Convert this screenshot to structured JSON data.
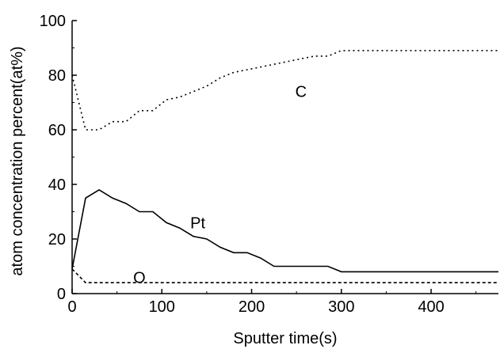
{
  "chart_data": {
    "type": "line",
    "xlabel": "Sputter time(s)",
    "ylabel": "atom concentration percent(at%)",
    "xlim": [
      0,
      475
    ],
    "ylim": [
      0,
      100
    ],
    "xticks": [
      0,
      100,
      200,
      300,
      400
    ],
    "yticks": [
      0,
      20,
      40,
      60,
      80,
      100
    ],
    "grid": false,
    "series": [
      {
        "name": "C",
        "style": "dotted",
        "color": "#000000",
        "x": [
          0,
          15,
          30,
          45,
          60,
          75,
          90,
          105,
          120,
          135,
          150,
          165,
          180,
          195,
          210,
          225,
          240,
          255,
          270,
          285,
          300,
          330,
          360,
          390,
          420,
          450,
          475
        ],
        "y": [
          80,
          60,
          60,
          63,
          63,
          67,
          67,
          71,
          72,
          74,
          76,
          79,
          81,
          82,
          83,
          84,
          85,
          86,
          87,
          87,
          89,
          89,
          89,
          89,
          89,
          89,
          89
        ]
      },
      {
        "name": "Pt",
        "style": "solid",
        "color": "#000000",
        "x": [
          0,
          15,
          30,
          45,
          60,
          75,
          90,
          105,
          120,
          135,
          150,
          165,
          180,
          195,
          210,
          225,
          240,
          255,
          270,
          285,
          300,
          330,
          360,
          390,
          420,
          450,
          475
        ],
        "y": [
          9,
          35,
          38,
          35,
          33,
          30,
          30,
          26,
          24,
          21,
          20,
          17,
          15,
          15,
          13,
          10,
          10,
          10,
          10,
          10,
          8,
          8,
          8,
          8,
          8,
          8,
          8
        ]
      },
      {
        "name": "O",
        "style": "dashed",
        "color": "#000000",
        "x": [
          0,
          15,
          30,
          60,
          100,
          200,
          300,
          400,
          475
        ],
        "y": [
          9,
          4,
          4,
          4,
          4,
          4,
          4,
          4,
          4
        ]
      }
    ],
    "annotations": [
      {
        "text": "C",
        "x": 255,
        "y": 74
      },
      {
        "text": "Pt",
        "x": 140,
        "y": 26
      },
      {
        "text": "O",
        "x": 75,
        "y": 6
      }
    ]
  }
}
